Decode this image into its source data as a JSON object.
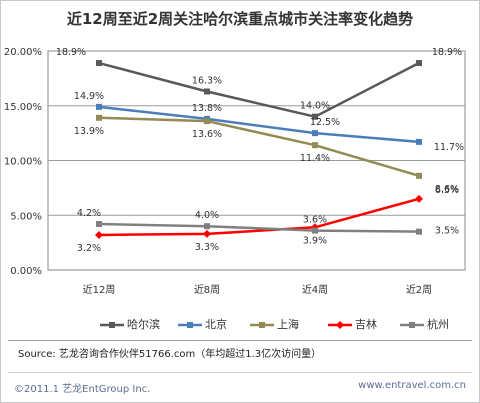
{
  "chart_data": {
    "type": "line",
    "title": "近12周至近2周关注哈尔滨重点城市关注率变化趋势",
    "categories": [
      "近12周",
      "近8周",
      "近4周",
      "近2周"
    ],
    "yticks": [
      "0.00%",
      "5.00%",
      "10.00%",
      "15.00%",
      "20.00%"
    ],
    "ylim": [
      0,
      20
    ],
    "grid": true,
    "legend_position": "bottom",
    "series": [
      {
        "name": "哈尔滨",
        "values": [
          18.9,
          16.3,
          14.0,
          18.9
        ],
        "labels": [
          "18.9%",
          "16.3%",
          "14.0%",
          "18.9%"
        ],
        "color": "#595959",
        "marker": "square"
      },
      {
        "name": "北京",
        "values": [
          14.9,
          13.8,
          12.5,
          11.7
        ],
        "labels": [
          "14.9%",
          "13.8%",
          "12.5%",
          "11.7%"
        ],
        "color": "#4a7ebb",
        "marker": "square"
      },
      {
        "name": "上海",
        "values": [
          13.9,
          13.6,
          11.4,
          8.6
        ],
        "labels": [
          "13.9%",
          "13.6%",
          "11.4%",
          "8.6%"
        ],
        "color": "#948a54",
        "marker": "square"
      },
      {
        "name": "吉林",
        "values": [
          3.2,
          3.3,
          3.9,
          6.5
        ],
        "labels": [
          "3.2%",
          "3.3%",
          "3.9%",
          "6.5%"
        ],
        "color": "#ff0000",
        "marker": "diamond"
      },
      {
        "name": "杭州",
        "values": [
          4.2,
          4.0,
          3.6,
          3.5
        ],
        "labels": [
          "4.2%",
          "4.0%",
          "3.6%",
          "3.5%"
        ],
        "color": "#808080",
        "marker": "square"
      }
    ]
  },
  "footer": {
    "source": "Source: 艺龙咨询合作伙伴51766.com（年均超过1.3亿次访问量）",
    "copyright": "©2011.1 艺龙EntGroup Inc.",
    "website": "www.entravel.com.cn"
  }
}
